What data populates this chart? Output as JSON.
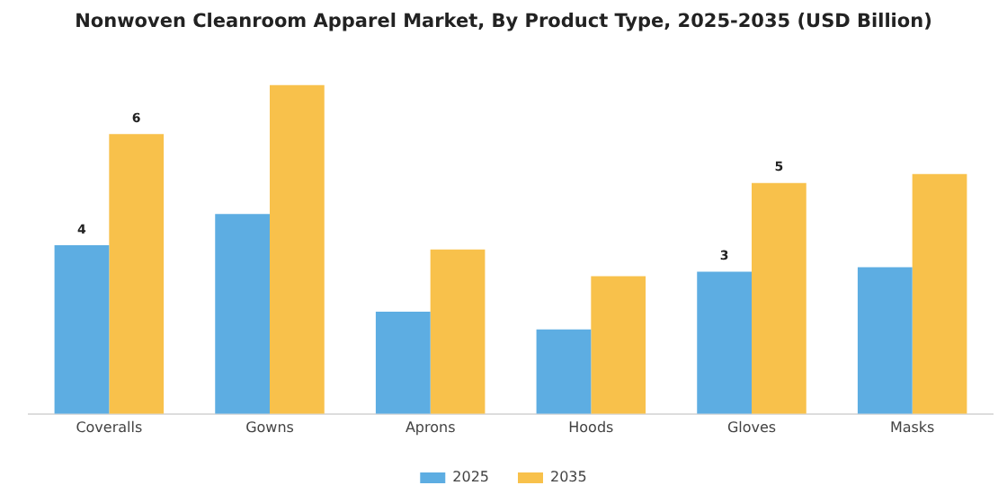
{
  "chart_data": {
    "type": "bar",
    "title": "Nonwoven Cleanroom Apparel Market, By Product Type, 2025-2035 (USD Billion)",
    "categories": [
      "Coveralls",
      "Gowns",
      "Aprons",
      "Hoods",
      "Gloves",
      "Masks"
    ],
    "series": [
      {
        "name": "2025",
        "color": "#5dade2",
        "values": [
          3.8,
          4.5,
          2.3,
          1.9,
          3.2,
          3.3
        ],
        "value_labels": [
          "4",
          null,
          null,
          null,
          "3",
          null
        ]
      },
      {
        "name": "2035",
        "color": "#f8c14b",
        "values": [
          6.3,
          7.4,
          3.7,
          3.1,
          5.2,
          5.4
        ],
        "value_labels": [
          "6",
          null,
          null,
          null,
          "5",
          null
        ]
      }
    ],
    "tick_labels": "x",
    "grid": false,
    "legend": "bottom"
  }
}
